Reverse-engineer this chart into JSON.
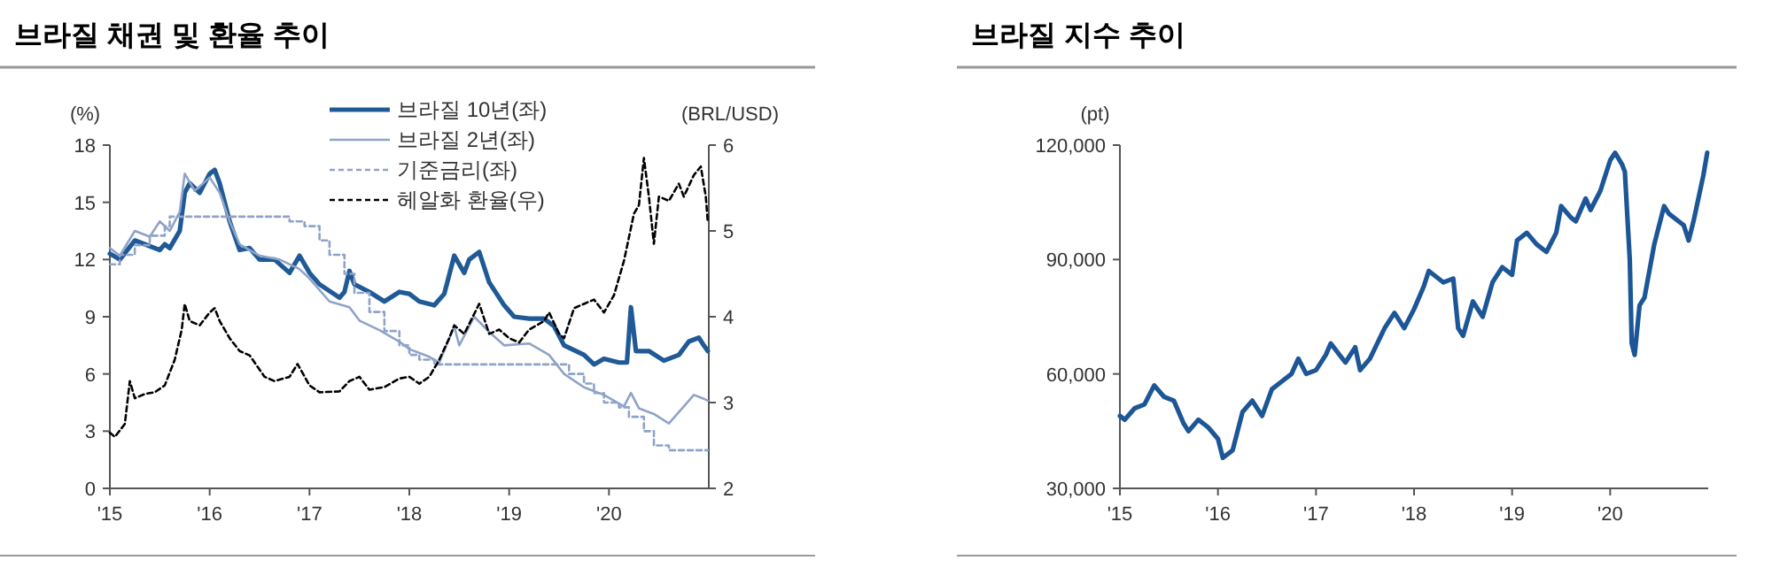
{
  "chart_data": [
    {
      "type": "line",
      "title": "브라질 채권 및 환율 추이",
      "ylabel": "(%)",
      "y2label": "(BRL/USD)",
      "legend": "top",
      "xlim": [
        2015,
        2021
      ],
      "xticks": [
        {
          "value": 2015,
          "label": "'15"
        },
        {
          "value": 2016,
          "label": "'16"
        },
        {
          "value": 2017,
          "label": "'17"
        },
        {
          "value": 2018,
          "label": "'18"
        },
        {
          "value": 2019,
          "label": "'19"
        },
        {
          "value": 2020,
          "label": "'20"
        }
      ],
      "ylim": [
        0,
        18
      ],
      "yticks": [
        0,
        3,
        6,
        9,
        12,
        15,
        18
      ],
      "y2lim": [
        2,
        6
      ],
      "y2ticks": [
        2,
        3,
        4,
        5,
        6
      ],
      "series": [
        {
          "name": "브라질 10년(좌)",
          "color": "#1f5a96",
          "line_style": "solid",
          "x": [
            2015.0,
            2015.1,
            2015.25,
            2015.4,
            2015.5,
            2015.55,
            2015.6,
            2015.7,
            2015.75,
            2015.8,
            2015.9,
            2016.0,
            2016.05,
            2016.1,
            2016.2,
            2016.3,
            2016.4,
            2016.5,
            2016.65,
            2016.8,
            2016.9,
            2017.0,
            2017.1,
            2017.3,
            2017.35,
            2017.4,
            2017.45,
            2017.6,
            2017.75,
            2017.9,
            2018.0,
            2018.1,
            2018.25,
            2018.35,
            2018.45,
            2018.55,
            2018.6,
            2018.7,
            2018.8,
            2018.95,
            2019.05,
            2019.2,
            2019.35,
            2019.45,
            2019.55,
            2019.75,
            2019.85,
            2019.95,
            2020.1,
            2020.18,
            2020.22,
            2020.27,
            2020.4,
            2020.55,
            2020.7,
            2020.8,
            2020.9,
            2020.95,
            2020.99
          ],
          "values": [
            12.3,
            12.0,
            13.0,
            12.7,
            12.5,
            12.8,
            12.6,
            13.5,
            15.5,
            16.0,
            15.5,
            16.5,
            16.7,
            16.0,
            14.0,
            12.5,
            12.6,
            12.0,
            12.0,
            11.3,
            12.2,
            11.3,
            10.7,
            10.0,
            10.3,
            11.4,
            10.7,
            10.3,
            9.8,
            10.3,
            10.2,
            9.8,
            9.6,
            10.2,
            12.2,
            11.3,
            12.0,
            12.4,
            10.8,
            9.6,
            9.0,
            8.9,
            8.9,
            8.5,
            7.5,
            7.0,
            6.5,
            6.8,
            6.6,
            6.6,
            9.5,
            7.2,
            7.2,
            6.7,
            7.0,
            7.7,
            7.9,
            7.5,
            7.2
          ]
        },
        {
          "name": "브라질 2년(좌)",
          "color": "#8fa3c8",
          "line_style": "solid",
          "x": [
            2015.0,
            2015.1,
            2015.25,
            2015.4,
            2015.5,
            2015.6,
            2015.7,
            2015.75,
            2015.85,
            2016.0,
            2016.1,
            2016.2,
            2016.3,
            2016.5,
            2016.7,
            2016.9,
            2017.0,
            2017.2,
            2017.4,
            2017.5,
            2017.7,
            2017.9,
            2018.0,
            2018.2,
            2018.3,
            2018.45,
            2018.5,
            2018.65,
            2018.8,
            2018.95,
            2019.2,
            2019.4,
            2019.55,
            2019.75,
            2019.95,
            2020.15,
            2020.22,
            2020.3,
            2020.45,
            2020.6,
            2020.75,
            2020.85,
            2020.95,
            2020.99
          ],
          "values": [
            12.6,
            12.2,
            13.5,
            13.2,
            14.0,
            13.5,
            14.5,
            16.5,
            15.6,
            16.3,
            15.5,
            14.0,
            12.8,
            12.2,
            12.0,
            11.5,
            11.0,
            9.8,
            9.5,
            8.8,
            8.3,
            7.7,
            7.3,
            6.9,
            6.6,
            8.5,
            7.5,
            9.0,
            8.2,
            7.5,
            7.6,
            7.0,
            6.0,
            5.3,
            4.9,
            4.3,
            5.0,
            4.2,
            3.9,
            3.4,
            4.3,
            4.9,
            4.7,
            4.6
          ]
        },
        {
          "name": "기준금리(좌)",
          "type": "step",
          "color": "#8fa3c8",
          "line_style": "dashed",
          "x": [
            2015.0,
            2015.1,
            2015.25,
            2015.4,
            2015.55,
            2015.6,
            2016.8,
            2016.95,
            2017.1,
            2017.2,
            2017.35,
            2017.45,
            2017.6,
            2017.75,
            2017.9,
            2018.0,
            2018.1,
            2018.25,
            2019.6,
            2019.75,
            2019.85,
            2019.95,
            2020.1,
            2020.2,
            2020.35,
            2020.45,
            2020.6,
            2020.99
          ],
          "values": [
            11.75,
            12.25,
            12.75,
            13.25,
            13.75,
            14.25,
            14.0,
            13.75,
            13.0,
            12.25,
            11.25,
            10.25,
            9.25,
            8.25,
            7.5,
            7.0,
            6.75,
            6.5,
            6.0,
            5.5,
            5.0,
            4.5,
            4.25,
            3.75,
            3.0,
            2.25,
            2.0,
            2.0
          ]
        },
        {
          "name": "헤알화 환율(우)",
          "color": "#000000",
          "line_style": "dashed",
          "axis": "y2",
          "x": [
            2015.0,
            2015.05,
            2015.15,
            2015.2,
            2015.25,
            2015.35,
            2015.45,
            2015.55,
            2015.65,
            2015.72,
            2015.75,
            2015.8,
            2015.9,
            2016.0,
            2016.05,
            2016.1,
            2016.2,
            2016.3,
            2016.4,
            2016.55,
            2016.65,
            2016.8,
            2016.88,
            2017.0,
            2017.1,
            2017.3,
            2017.4,
            2017.5,
            2017.6,
            2017.75,
            2017.9,
            2018.0,
            2018.1,
            2018.2,
            2018.3,
            2018.4,
            2018.45,
            2018.55,
            2018.7,
            2018.8,
            2018.9,
            2019.0,
            2019.1,
            2019.2,
            2019.35,
            2019.4,
            2019.5,
            2019.55,
            2019.65,
            2019.75,
            2019.85,
            2019.95,
            2020.05,
            2020.15,
            2020.25,
            2020.3,
            2020.35,
            2020.4,
            2020.45,
            2020.5,
            2020.6,
            2020.7,
            2020.75,
            2020.85,
            2020.92,
            2020.97,
            2020.99
          ],
          "values": [
            2.65,
            2.6,
            2.75,
            3.25,
            3.05,
            3.1,
            3.12,
            3.2,
            3.5,
            3.85,
            4.15,
            3.95,
            3.9,
            4.05,
            4.1,
            3.95,
            3.75,
            3.6,
            3.55,
            3.3,
            3.25,
            3.3,
            3.45,
            3.2,
            3.12,
            3.13,
            3.25,
            3.3,
            3.15,
            3.18,
            3.28,
            3.3,
            3.22,
            3.3,
            3.5,
            3.75,
            3.9,
            3.8,
            4.15,
            3.8,
            3.85,
            3.75,
            3.7,
            3.85,
            3.95,
            4.05,
            3.8,
            3.75,
            4.1,
            4.15,
            4.2,
            4.05,
            4.25,
            4.65,
            5.2,
            5.3,
            5.85,
            5.4,
            4.85,
            5.4,
            5.35,
            5.55,
            5.4,
            5.65,
            5.75,
            5.4,
            5.1
          ]
        }
      ]
    },
    {
      "type": "line",
      "title": "브라질 지수 추이",
      "ylabel": "(pt)",
      "xlim": [
        2015,
        2021
      ],
      "xticks": [
        {
          "value": 2015,
          "label": "'15"
        },
        {
          "value": 2016,
          "label": "'16"
        },
        {
          "value": 2017,
          "label": "'17"
        },
        {
          "value": 2018,
          "label": "'18"
        },
        {
          "value": 2019,
          "label": "'19"
        },
        {
          "value": 2020,
          "label": "'20"
        }
      ],
      "ylim": [
        30000,
        120000
      ],
      "yticks": [
        {
          "value": 30000,
          "label": "30,000"
        },
        {
          "value": 60000,
          "label": "60,000"
        },
        {
          "value": 90000,
          "label": "90,000"
        },
        {
          "value": 120000,
          "label": "120,000"
        }
      ],
      "series": [
        {
          "color": "#1c5697",
          "x": [
            2015.0,
            2015.05,
            2015.15,
            2015.25,
            2015.35,
            2015.45,
            2015.55,
            2015.65,
            2015.7,
            2015.8,
            2015.9,
            2016.0,
            2016.05,
            2016.15,
            2016.25,
            2016.35,
            2016.45,
            2016.55,
            2016.65,
            2016.75,
            2016.82,
            2016.9,
            2017.0,
            2017.1,
            2017.15,
            2017.3,
            2017.4,
            2017.45,
            2017.55,
            2017.7,
            2017.8,
            2017.9,
            2018.0,
            2018.1,
            2018.15,
            2018.3,
            2018.4,
            2018.45,
            2018.5,
            2018.6,
            2018.7,
            2018.8,
            2018.9,
            2019.0,
            2019.05,
            2019.15,
            2019.25,
            2019.35,
            2019.45,
            2019.5,
            2019.6,
            2019.65,
            2019.75,
            2019.8,
            2019.9,
            2020.0,
            2020.05,
            2020.12,
            2020.15,
            2020.2,
            2020.22,
            2020.25,
            2020.3,
            2020.35,
            2020.45,
            2020.55,
            2020.6,
            2020.7,
            2020.75,
            2020.8,
            2020.85,
            2020.9,
            2020.95,
            2020.99
          ],
          "values": [
            49000,
            48000,
            51000,
            52000,
            57000,
            54000,
            53000,
            47000,
            45000,
            48000,
            46000,
            43000,
            38000,
            40000,
            50000,
            53000,
            49000,
            56000,
            58000,
            60000,
            64000,
            60000,
            61000,
            65000,
            68000,
            63000,
            67000,
            61000,
            64000,
            72000,
            76000,
            72000,
            77000,
            83000,
            87000,
            84000,
            85000,
            72000,
            70000,
            79000,
            75000,
            84000,
            88000,
            86000,
            95000,
            97000,
            94000,
            92000,
            97000,
            104000,
            101000,
            100000,
            106000,
            103000,
            108000,
            116000,
            118000,
            115000,
            113000,
            90000,
            68000,
            65000,
            78000,
            80000,
            94000,
            104000,
            102000,
            100000,
            99000,
            95000,
            100000,
            106000,
            112000,
            118000
          ]
        }
      ]
    }
  ]
}
